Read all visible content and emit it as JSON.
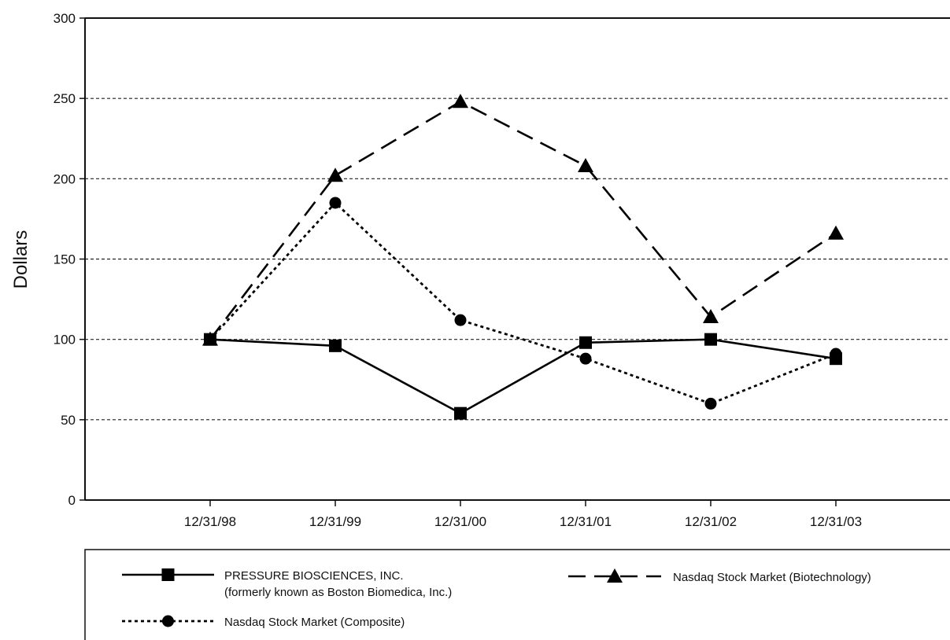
{
  "chart_data": {
    "type": "line",
    "title": "",
    "xlabel": "",
    "ylabel": "Dollars",
    "categories": [
      "12/31/98",
      "12/31/99",
      "12/31/00",
      "12/31/01",
      "12/31/02",
      "12/31/03"
    ],
    "ylim": [
      0,
      300
    ],
    "yticks": [
      0,
      50,
      100,
      150,
      200,
      250,
      300
    ],
    "grid": "horizontal dashed",
    "legend_position": "bottom",
    "series": [
      {
        "name": "PRESSURE BIOSCIENCES, INC.",
        "name_line2": "(formerly known as Boston Biomedica, Inc.)",
        "line_style": "solid",
        "marker": "square",
        "values": [
          100,
          96,
          54,
          98,
          100,
          88
        ]
      },
      {
        "name": "Nasdaq Stock Market (Biotechnology)",
        "line_style": "dashed",
        "marker": "triangle",
        "values": [
          100,
          202,
          248,
          208,
          114,
          166
        ]
      },
      {
        "name": "Nasdaq Stock Market (Composite)",
        "line_style": "dotted",
        "marker": "circle",
        "values": [
          100,
          185,
          112,
          88,
          60,
          91
        ]
      }
    ]
  }
}
